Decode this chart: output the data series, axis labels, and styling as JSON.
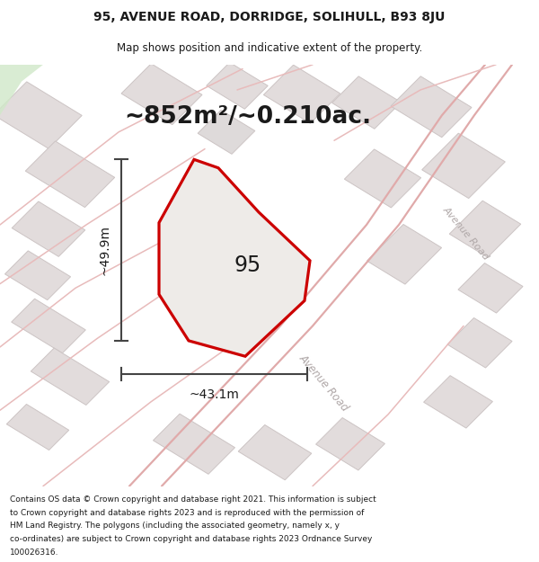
{
  "title_line1": "95, AVENUE ROAD, DORRIDGE, SOLIHULL, B93 8JU",
  "title_line2": "Map shows position and indicative extent of the property.",
  "area_text": "~852m²/~0.210ac.",
  "label_95": "95",
  "dim_height": "~49.9m",
  "dim_width": "~43.1m",
  "road_label_center": "Avenue Road",
  "road_label_right": "Avenue Road",
  "footer_lines": [
    "Contains OS data © Crown copyright and database right 2021. This information is subject",
    "to Crown copyright and database rights 2023 and is reproduced with the permission of",
    "HM Land Registry. The polygons (including the associated geometry, namely x, y",
    "co-ordinates) are subject to Crown copyright and database rights 2023 Ordnance Survey",
    "100026316."
  ],
  "map_bg": "#f5f0f0",
  "lot_face": "#e2dcdc",
  "lot_edge": "#ccc4c4",
  "road_color_main": "#e0aaaa",
  "road_color_cross": "#e8bbbb",
  "poly_face": "#eeebe8",
  "poly_edge": "#cc0000",
  "dim_color": "#444444",
  "text_dark": "#1a1a1a",
  "road_label_color": "#b0a8a8",
  "green_color": "#d0e8c8"
}
